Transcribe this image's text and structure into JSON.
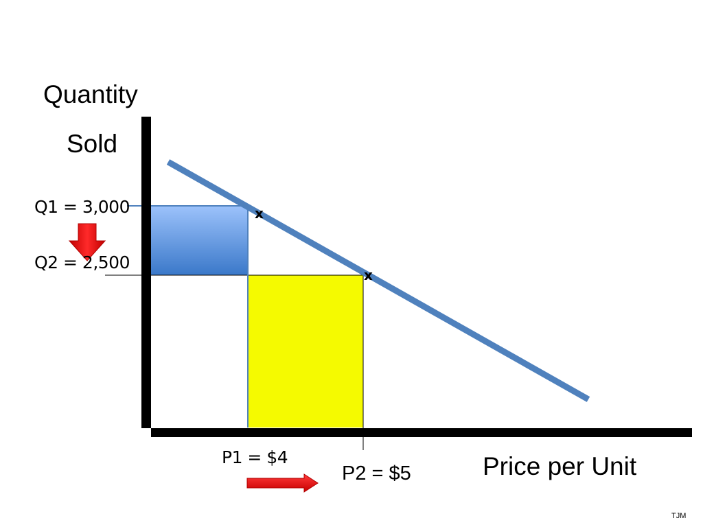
{
  "labels": {
    "y_axis_line1": "Quantity",
    "y_axis_line2": "Sold",
    "x_axis": "Price per Unit",
    "q1": "Q1 = 3,000",
    "q2": "Q2 = 2,500",
    "p1": "P1 = $4",
    "p2": "P2 = $5",
    "point1_marker": "x",
    "point2_marker": "x",
    "credit": "TJM"
  },
  "points": [
    {
      "price": 4,
      "quantity": 3000,
      "marker": "x"
    },
    {
      "price": 5,
      "quantity": 2500,
      "marker": "x"
    }
  ],
  "arrows": [
    {
      "name": "quantity-decrease",
      "direction": "down",
      "color": "#ff0000"
    },
    {
      "name": "price-increase",
      "direction": "right",
      "color": "#ff0000"
    }
  ],
  "colors": {
    "demand_line": "#4f81bd",
    "lost_revenue_rect_top": "#9cc2fb",
    "lost_revenue_rect_bottom": "#3a78c9",
    "gained_revenue_rect": "#f5fa00",
    "axes": "#000000",
    "arrow": "#ff0000"
  }
}
